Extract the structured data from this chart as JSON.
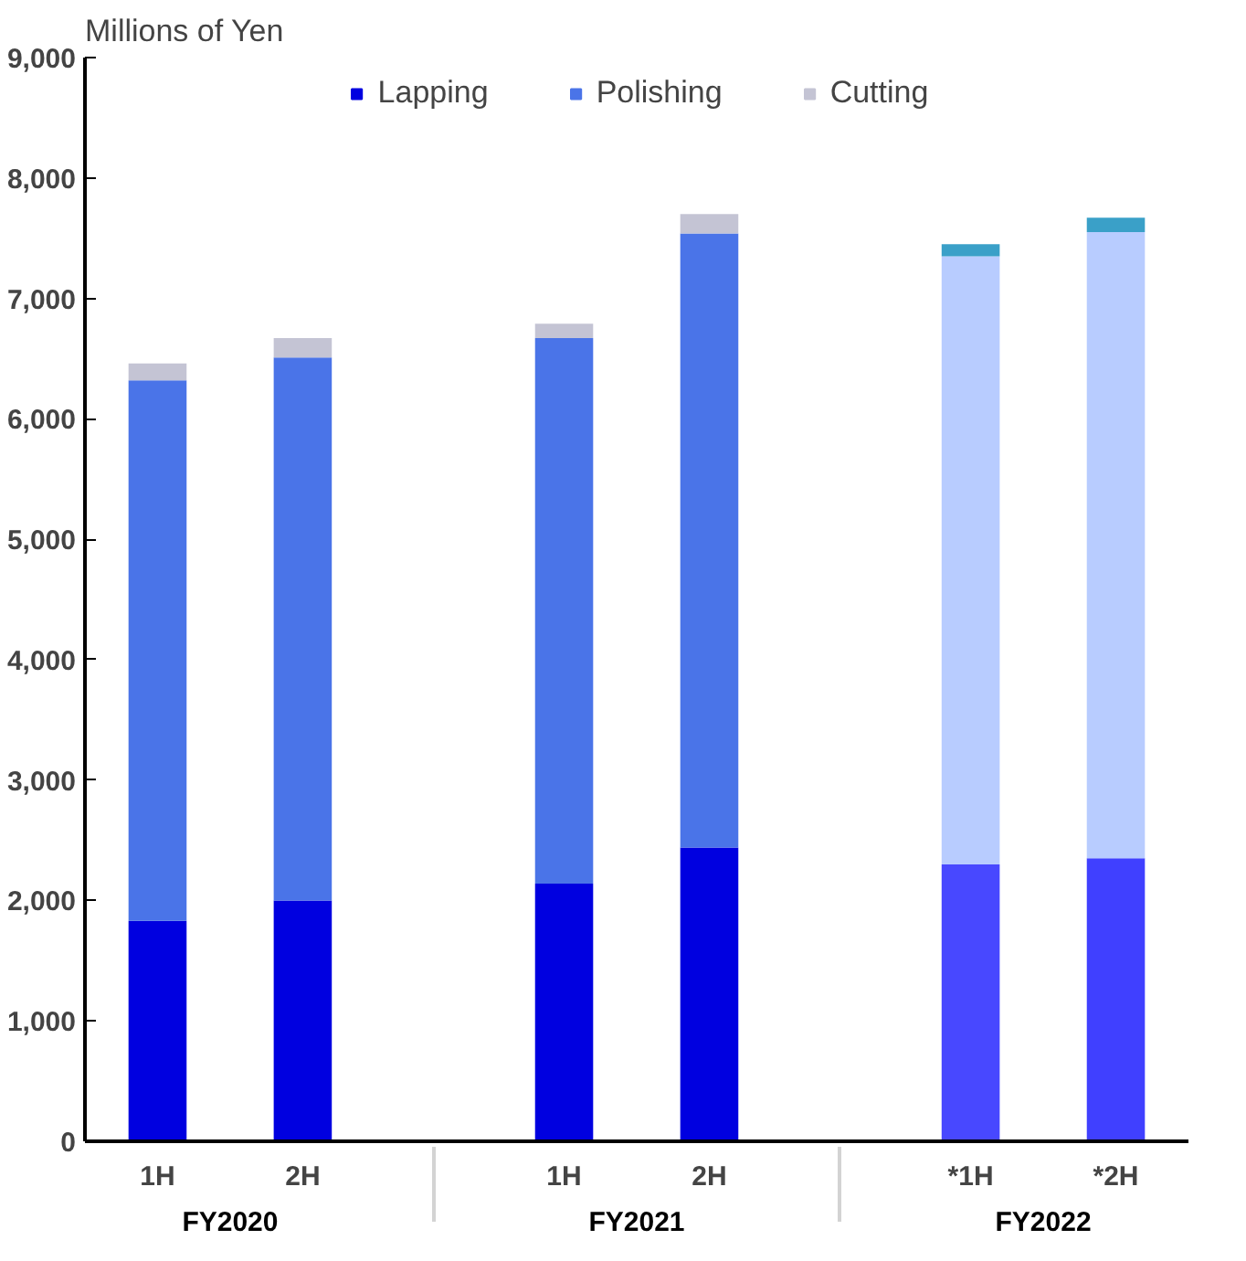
{
  "chart_data": {
    "type": "bar",
    "stacked": true,
    "ylabel": "Millions of Yen",
    "categories": [
      "1H",
      "2H",
      "1H",
      "2H",
      "*1H",
      "*2H"
    ],
    "annotations": [
      "FY2020",
      "FY2021",
      "FY2022"
    ],
    "series": [
      {
        "name": "Lapping",
        "color": "#0000e0",
        "colors": [
          "#0000e0",
          "#0000e0",
          "#0000e0",
          "#0000e0",
          "#4848ff",
          "#4040ff"
        ],
        "values": [
          1830,
          2000,
          2140,
          2440,
          2300,
          2350
        ]
      },
      {
        "name": "Polishing",
        "color": "#4a74e8",
        "colors": [
          "#4a74e8",
          "#4a74e8",
          "#4a74e8",
          "#4a74e8",
          "#b8ccff",
          "#b8ccff"
        ],
        "values": [
          4490,
          4510,
          4530,
          5100,
          5050,
          5200
        ]
      },
      {
        "name": "Cutting",
        "color": "#c4c4d4",
        "colors": [
          "#c4c4d4",
          "#c4c4d4",
          "#c4c4d4",
          "#c4c4d4",
          "#3aa0c8",
          "#3aa0c8"
        ],
        "values": [
          140,
          160,
          120,
          160,
          100,
          120
        ]
      }
    ],
    "ylim": [
      0,
      9000
    ],
    "yticks": [
      {
        "value": 0,
        "label": "0"
      },
      {
        "value": 1000,
        "label": "1,000"
      },
      {
        "value": 2000,
        "label": "2,000"
      },
      {
        "value": 3000,
        "label": "3,000"
      },
      {
        "value": 4000,
        "label": "4,000"
      },
      {
        "value": 5000,
        "label": "5,000"
      },
      {
        "value": 6000,
        "label": "6,000"
      },
      {
        "value": 7000,
        "label": "7,000"
      },
      {
        "value": 8000,
        "label": "8,000"
      },
      {
        "value": 9000,
        "label": "9,000"
      }
    ],
    "grid": false,
    "legend": "top"
  }
}
